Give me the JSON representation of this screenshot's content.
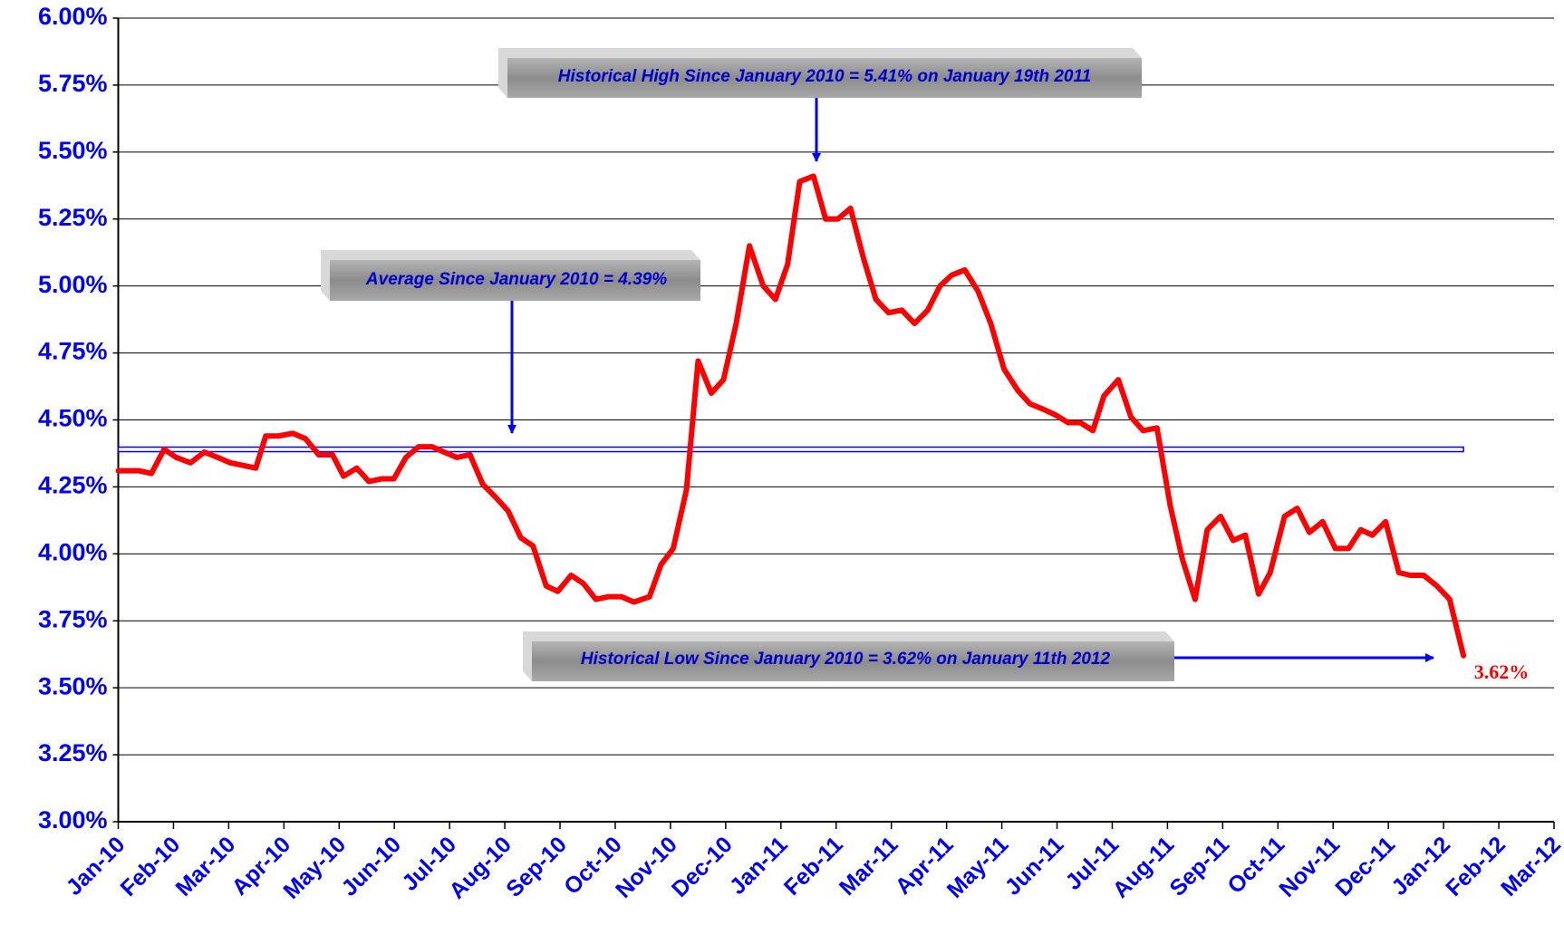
{
  "chart_data": {
    "type": "line",
    "annotations": {
      "high": "Historical High Since January 2010 = 5.41% on January 19th 2011",
      "average": "Average Since January 2010 = 4.39%",
      "low": "Historical Low Since January 2010  = 3.62% on January 11th 2012",
      "last": "3.62%"
    },
    "average_line": {
      "value": 4.39,
      "color": "#0000ff"
    },
    "series": [
      {
        "color": "#ff0000",
        "x": [
          0,
          0.38,
          0.6,
          0.83,
          1.05,
          1.31,
          1.56,
          1.8,
          2.03,
          2.27,
          2.49,
          2.67,
          2.9,
          3.16,
          3.39,
          3.63,
          3.88,
          4.08,
          4.32,
          4.54,
          4.77,
          4.99,
          5.21,
          5.44,
          5.68,
          5.9,
          6.13,
          6.37,
          6.6,
          6.84,
          7.06,
          7.29,
          7.51,
          7.75,
          7.96,
          8.2,
          8.42,
          8.65,
          8.87,
          9.11,
          9.34,
          9.62,
          9.83,
          10.05,
          10.29,
          10.5,
          10.74,
          10.96,
          11.19,
          11.43,
          11.68,
          11.9,
          12.12,
          12.34,
          12.59,
          12.81,
          13.03,
          13.26,
          13.5,
          13.72,
          13.95,
          14.19,
          14.42,
          14.66,
          14.88,
          15.09,
          15.33,
          15.57,
          15.8,
          16.04,
          16.29,
          16.51,
          16.75,
          16.96,
          17.2,
          17.42,
          17.65,
          17.85,
          18.11,
          18.34,
          18.56,
          18.81,
          19.05,
          19.27,
          19.5,
          19.72,
          19.96,
          20.19,
          20.41,
          20.65,
          20.86,
          21.12,
          21.35,
          21.57,
          21.81,
          22.04,
          22.28,
          22.5,
          22.71,
          22.95,
          23.19,
          23.4,
          23.64,
          23.88,
          24.11,
          24.36
        ],
        "values": [
          4.31,
          4.31,
          4.3,
          4.39,
          4.36,
          4.34,
          4.38,
          4.36,
          4.34,
          4.33,
          4.32,
          4.44,
          4.44,
          4.45,
          4.43,
          4.37,
          4.37,
          4.29,
          4.32,
          4.27,
          4.28,
          4.28,
          4.36,
          4.4,
          4.4,
          4.38,
          4.36,
          4.37,
          4.26,
          4.21,
          4.16,
          4.06,
          4.03,
          3.88,
          3.86,
          3.92,
          3.89,
          3.83,
          3.84,
          3.84,
          3.82,
          3.84,
          3.96,
          4.02,
          4.24,
          4.72,
          4.6,
          4.65,
          4.86,
          5.15,
          5.0,
          4.95,
          5.08,
          5.39,
          5.41,
          5.25,
          5.25,
          5.29,
          5.1,
          4.95,
          4.9,
          4.91,
          4.86,
          4.91,
          5.0,
          5.04,
          5.06,
          4.98,
          4.86,
          4.69,
          4.61,
          4.56,
          4.54,
          4.52,
          4.49,
          4.49,
          4.46,
          4.59,
          4.65,
          4.51,
          4.46,
          4.47,
          4.18,
          3.98,
          3.83,
          4.09,
          4.14,
          4.05,
          4.07,
          3.85,
          3.93,
          4.14,
          4.17,
          4.08,
          4.12,
          4.02,
          4.02,
          4.09,
          4.07,
          4.12,
          3.93,
          3.92,
          3.92,
          3.88,
          3.83,
          3.62
        ]
      }
    ],
    "xlim": [
      0,
      26
    ],
    "xticks": [
      {
        "value": 0,
        "label": "Jan-10"
      },
      {
        "value": 1,
        "label": "Feb-10"
      },
      {
        "value": 2,
        "label": "Mar-10"
      },
      {
        "value": 3,
        "label": "Apr-10"
      },
      {
        "value": 4,
        "label": "May-10"
      },
      {
        "value": 5,
        "label": "Jun-10"
      },
      {
        "value": 6,
        "label": "Jul-10"
      },
      {
        "value": 7,
        "label": "Aug-10"
      },
      {
        "value": 8,
        "label": "Sep-10"
      },
      {
        "value": 9,
        "label": "Oct-10"
      },
      {
        "value": 10,
        "label": "Nov-10"
      },
      {
        "value": 11,
        "label": "Dec-10"
      },
      {
        "value": 12,
        "label": "Jan-11"
      },
      {
        "value": 13,
        "label": "Feb-11"
      },
      {
        "value": 14,
        "label": "Mar-11"
      },
      {
        "value": 15,
        "label": "Apr-11"
      },
      {
        "value": 16,
        "label": "May-11"
      },
      {
        "value": 17,
        "label": "Jun-11"
      },
      {
        "value": 18,
        "label": "Jul-11"
      },
      {
        "value": 19,
        "label": "Aug-11"
      },
      {
        "value": 20,
        "label": "Sep-11"
      },
      {
        "value": 21,
        "label": "Oct-11"
      },
      {
        "value": 22,
        "label": "Nov-11"
      },
      {
        "value": 23,
        "label": "Dec-11"
      },
      {
        "value": 24,
        "label": "Jan-12"
      },
      {
        "value": 25,
        "label": "Feb-12"
      },
      {
        "value": 26,
        "label": "Mar-12"
      }
    ],
    "ylim": [
      3,
      6
    ],
    "yticks": [
      {
        "value": 3,
        "label": "3.00%"
      },
      {
        "value": 3.25,
        "label": "3.25%"
      },
      {
        "value": 3.5,
        "label": "3.50%"
      },
      {
        "value": 3.75,
        "label": "3.75%"
      },
      {
        "value": 4,
        "label": "4.00%"
      },
      {
        "value": 4.25,
        "label": "4.25%"
      },
      {
        "value": 4.5,
        "label": "4.50%"
      },
      {
        "value": 4.75,
        "label": "4.75%"
      },
      {
        "value": 5,
        "label": "5.00%"
      },
      {
        "value": 5.25,
        "label": "5.25%"
      },
      {
        "value": 5.5,
        "label": "5.50%"
      },
      {
        "value": 5.75,
        "label": "5.75%"
      },
      {
        "value": 6,
        "label": "6.00%"
      }
    ],
    "grid": true
  }
}
